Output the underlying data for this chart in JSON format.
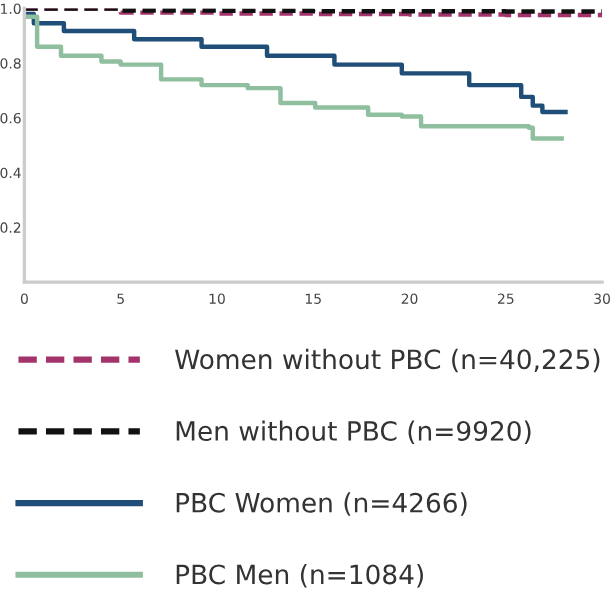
{
  "chart_data": {
    "type": "step",
    "xlim": [
      0,
      30
    ],
    "ylim": [
      0,
      1.0
    ],
    "xticks": [
      0,
      5,
      10,
      15,
      20,
      25,
      30
    ],
    "yticks": [
      0.2,
      0.4,
      0.6,
      0.8,
      {
        "value": 1.0,
        "label": "1.0"
      }
    ],
    "grid": false,
    "legend": "bottom",
    "line_style": "solid",
    "marker": "none",
    "series": [
      {
        "name": "Women without PBC (n=40,225)",
        "color": "#a3336b",
        "line_style": "dashed",
        "x": [
          0,
          5,
          10,
          15,
          20,
          25,
          30
        ],
        "values": [
          1.0,
          0.985,
          0.982,
          0.98,
          0.978,
          0.976,
          0.975
        ]
      },
      {
        "name": "Men without PBC (n=9920)",
        "color": "#111111",
        "line_style": "dashed",
        "x": [
          0,
          5,
          10,
          15,
          20,
          25,
          30
        ],
        "values": [
          1.0,
          0.993,
          0.992,
          0.99,
          0.99,
          0.989,
          0.989
        ]
      },
      {
        "name": "PBC Women (n=4266)",
        "color": "#1f4e79",
        "x": [
          0,
          0.49,
          2.05,
          5.7,
          9.2,
          12.6,
          16.1,
          19.6,
          23.1,
          25.8,
          26.4,
          26.9,
          28.1
        ],
        "values": [
          0.98,
          0.946,
          0.918,
          0.888,
          0.86,
          0.827,
          0.795,
          0.763,
          0.72,
          0.677,
          0.645,
          0.622,
          0.622
        ]
      },
      {
        "name": "PBC Men (n=1084)",
        "color": "#8fbf9f",
        "x": [
          0,
          0.66,
          1.9,
          4.0,
          5.0,
          7.1,
          9.2,
          11.6,
          13.3,
          15.1,
          17.85,
          19.6,
          20.6,
          26.2,
          26.4,
          27.9
        ],
        "values": [
          0.97,
          0.86,
          0.827,
          0.806,
          0.795,
          0.741,
          0.72,
          0.709,
          0.655,
          0.638,
          0.612,
          0.605,
          0.57,
          0.564,
          0.525,
          0.525
        ]
      }
    ]
  }
}
